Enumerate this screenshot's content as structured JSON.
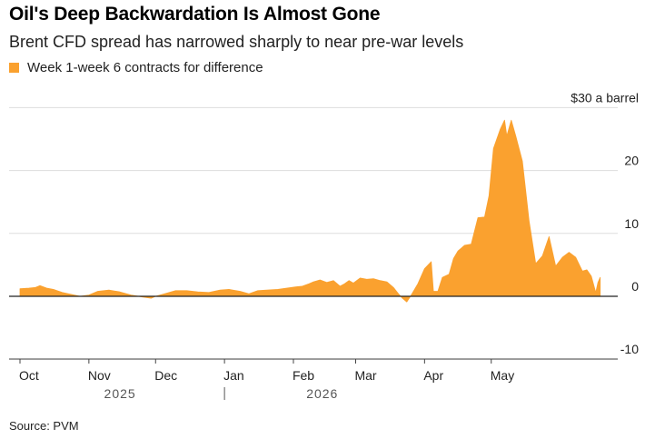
{
  "header": {
    "title": "Oil's Deep Backwardation Is Almost Gone",
    "subtitle": "Brent CFD spread has narrowed sharply to near pre-war levels"
  },
  "footer": {
    "source": "Source: PVM"
  },
  "colors": {
    "series": "#FAA12F",
    "grid": "#dddddd",
    "zero": "#222222"
  },
  "chart_data": {
    "type": "area",
    "title": "Oil's Deep Backwardation Is Almost Gone",
    "subtitle": "Brent CFD spread has narrowed sharply to near pre-war levels",
    "ylabel": "$30 a barrel",
    "ylim": [
      -10,
      30
    ],
    "y_ticks": [
      -10,
      0,
      10,
      20,
      30
    ],
    "y_tick_labels": [
      "-10",
      "0",
      "10",
      "20",
      "$30 a barrel"
    ],
    "grid": true,
    "legend_position": "top-left",
    "x_ticks": [
      {
        "date": "2025-10-01",
        "label": "Oct"
      },
      {
        "date": "2025-11-01",
        "label": "Nov"
      },
      {
        "date": "2025-12-01",
        "label": "Dec"
      },
      {
        "date": "2026-01-01",
        "label": "Jan"
      },
      {
        "date": "2026-02-01",
        "label": "Feb"
      },
      {
        "date": "2026-03-01",
        "label": "Mar"
      },
      {
        "date": "2026-04-01",
        "label": "Apr"
      },
      {
        "date": "2026-05-01",
        "label": "May"
      }
    ],
    "year_labels": [
      {
        "date": "2025-11-15",
        "label": "2025"
      },
      {
        "date": "2026-02-14",
        "label": "2026"
      }
    ],
    "year_divider": "2026-01-01",
    "series": [
      {
        "name": "Week 1-week 6 contracts for difference",
        "points": [
          [
            "2025-10-01",
            1.2
          ],
          [
            "2025-10-05",
            1.3
          ],
          [
            "2025-10-08",
            1.4
          ],
          [
            "2025-10-10",
            1.7
          ],
          [
            "2025-10-13",
            1.3
          ],
          [
            "2025-10-16",
            1.1
          ],
          [
            "2025-10-20",
            0.6
          ],
          [
            "2025-10-24",
            0.3
          ],
          [
            "2025-10-28",
            0.0
          ],
          [
            "2025-11-01",
            0.2
          ],
          [
            "2025-11-05",
            0.8
          ],
          [
            "2025-11-10",
            1.0
          ],
          [
            "2025-11-15",
            0.7
          ],
          [
            "2025-11-20",
            0.2
          ],
          [
            "2025-11-25",
            -0.1
          ],
          [
            "2025-11-29",
            -0.3
          ],
          [
            "2025-12-01",
            0.0
          ],
          [
            "2025-12-05",
            0.4
          ],
          [
            "2025-12-10",
            0.9
          ],
          [
            "2025-12-15",
            0.9
          ],
          [
            "2025-12-20",
            0.7
          ],
          [
            "2025-12-25",
            0.6
          ],
          [
            "2025-12-30",
            1.0
          ],
          [
            "2026-01-03",
            1.1
          ],
          [
            "2026-01-08",
            0.8
          ],
          [
            "2026-01-12",
            0.4
          ],
          [
            "2026-01-16",
            0.9
          ],
          [
            "2026-01-20",
            1.0
          ],
          [
            "2026-01-25",
            1.1
          ],
          [
            "2026-01-29",
            1.3
          ],
          [
            "2026-02-02",
            1.5
          ],
          [
            "2026-02-05",
            1.6
          ],
          [
            "2026-02-08",
            2.0
          ],
          [
            "2026-02-10",
            2.3
          ],
          [
            "2026-02-13",
            2.6
          ],
          [
            "2026-02-16",
            2.2
          ],
          [
            "2026-02-19",
            2.5
          ],
          [
            "2026-02-22",
            1.6
          ],
          [
            "2026-02-24",
            2.0
          ],
          [
            "2026-02-26",
            2.5
          ],
          [
            "2026-02-28",
            2.1
          ],
          [
            "2026-03-03",
            2.9
          ],
          [
            "2026-03-06",
            2.7
          ],
          [
            "2026-03-09",
            2.8
          ],
          [
            "2026-03-12",
            2.5
          ],
          [
            "2026-03-15",
            2.3
          ],
          [
            "2026-03-18",
            1.4
          ],
          [
            "2026-03-20",
            0.5
          ],
          [
            "2026-03-22",
            -0.3
          ],
          [
            "2026-03-24",
            -0.9
          ],
          [
            "2026-03-26",
            0.2
          ],
          [
            "2026-03-29",
            2.0
          ],
          [
            "2026-04-01",
            4.4
          ],
          [
            "2026-04-04",
            5.5
          ],
          [
            "2026-04-05",
            0.8
          ],
          [
            "2026-04-07",
            0.8
          ],
          [
            "2026-04-09",
            3.0
          ],
          [
            "2026-04-12",
            3.5
          ],
          [
            "2026-04-14",
            6.0
          ],
          [
            "2026-04-16",
            7.2
          ],
          [
            "2026-04-19",
            8.1
          ],
          [
            "2026-04-22",
            8.3
          ],
          [
            "2026-04-25",
            12.5
          ],
          [
            "2026-04-28",
            12.6
          ],
          [
            "2026-04-30",
            16.0
          ],
          [
            "2026-05-02",
            23.5
          ],
          [
            "2026-05-05",
            26.5
          ],
          [
            "2026-05-07",
            28.0
          ],
          [
            "2026-05-08",
            25.5
          ],
          [
            "2026-05-10",
            28.0
          ],
          [
            "2026-05-12",
            25.5
          ],
          [
            "2026-05-15",
            21.5
          ],
          [
            "2026-05-18",
            12.0
          ],
          [
            "2026-05-21",
            5.2
          ],
          [
            "2026-05-24",
            6.4
          ],
          [
            "2026-05-27",
            9.5
          ],
          [
            "2026-05-30",
            4.8
          ],
          [
            "2026-06-02",
            6.2
          ],
          [
            "2026-06-05",
            7.0
          ],
          [
            "2026-06-08",
            6.2
          ],
          [
            "2026-06-11",
            4.0
          ],
          [
            "2026-06-13",
            4.2
          ],
          [
            "2026-06-15",
            3.2
          ],
          [
            "2026-06-17",
            0.6
          ],
          [
            "2026-06-18",
            2.2
          ],
          [
            "2026-06-19",
            3.0
          ]
        ]
      }
    ]
  }
}
